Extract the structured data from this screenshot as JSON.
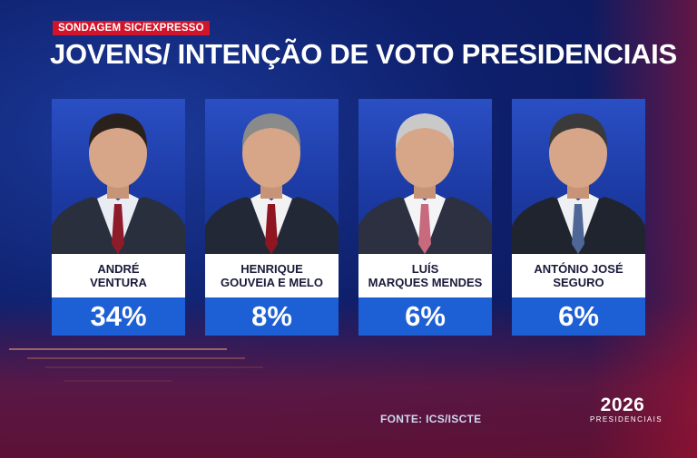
{
  "header": {
    "tag": "SONDAGEM SIC/EXPRESSO",
    "title": "JOVENS/ INTENÇÃO DE VOTO PRESIDENCIAIS"
  },
  "candidates": [
    {
      "name_line1": "ANDRÉ",
      "name_line2": "VENTURA",
      "percent": "34%",
      "percent_value": 34,
      "tie_color": "#8e1b2a",
      "shirt_color": "#e9ecf2",
      "suit_color": "#2a2f3d",
      "hair_color": "#2b211c"
    },
    {
      "name_line1": "HENRIQUE",
      "name_line2": "GOUVEIA E MELO",
      "percent": "8%",
      "percent_value": 8,
      "tie_color": "#8f1620",
      "shirt_color": "#f2f2f4",
      "suit_color": "#232836",
      "hair_color": "#8a8a8a"
    },
    {
      "name_line1": "LUÍS",
      "name_line2": "MARQUES MENDES",
      "percent": "6%",
      "percent_value": 6,
      "tie_color": "#c86a7e",
      "shirt_color": "#f4f4f6",
      "suit_color": "#2c3040",
      "hair_color": "#c9c9c9"
    },
    {
      "name_line1": "ANTÓNIO JOSÉ",
      "name_line2": "SEGURO",
      "percent": "6%",
      "percent_value": 6,
      "tie_color": "#4f6796",
      "shirt_color": "#eef0f4",
      "suit_color": "#20242f",
      "hair_color": "#3a3a3a"
    }
  ],
  "footer": {
    "source": "FONTE: ICS/ISCTE",
    "logo_year": "2026",
    "logo_sub": "PRESIDENCIAIS"
  },
  "colors": {
    "tag_red": "#d2142b",
    "percent_blue": "#1d5fd4",
    "name_bg": "#ffffff"
  }
}
